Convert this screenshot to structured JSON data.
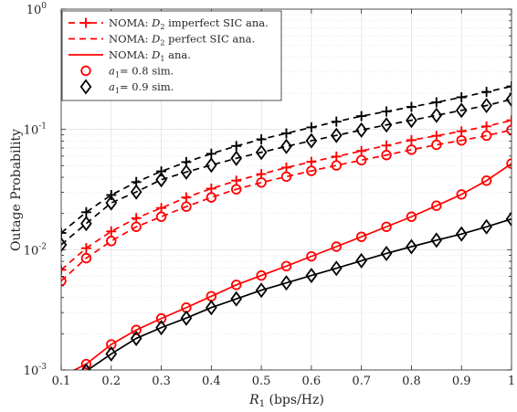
{
  "chart_data": {
    "type": "line",
    "xlabel": "R",
    "xlabel_sub": "1",
    "xlabel_unit": " (bps/Hz)",
    "ylabel": "Outage Probability",
    "xlim": [
      0.1,
      1
    ],
    "ylim": [
      0.001,
      1
    ],
    "yscale": "log",
    "grid": true,
    "legend_position": "top-left",
    "x_ticks": [
      "0.1",
      "0.2",
      "0.3",
      "0.4",
      "0.5",
      "0.6",
      "0.7",
      "0.8",
      "0.9",
      "1"
    ],
    "y_ticks": [
      {
        "base": "10",
        "exp": "-3",
        "value": 0.001
      },
      {
        "base": "10",
        "exp": "-2",
        "value": 0.01
      },
      {
        "base": "10",
        "exp": "-1",
        "value": 0.1
      },
      {
        "base": "10",
        "exp": "0",
        "value": 1
      }
    ],
    "x": [
      0.1,
      0.15,
      0.2,
      0.25,
      0.3,
      0.35,
      0.4,
      0.45,
      0.5,
      0.55,
      0.6,
      0.65,
      0.7,
      0.75,
      0.8,
      0.85,
      0.9,
      0.95,
      1.0
    ],
    "legend": [
      {
        "prefix": "NOMA: ",
        "main": "D",
        "sub": "2",
        "suffix": " imperfect SIC ana.",
        "color": "#ff0000",
        "line": "dashed",
        "marker": "plus"
      },
      {
        "prefix": "NOMA: ",
        "main": "D",
        "sub": "2",
        "suffix": " perfect SIC ana.",
        "color": "#ff0000",
        "line": "dashed",
        "marker": "none"
      },
      {
        "prefix": "NOMA: ",
        "main": "D",
        "sub": "1",
        "suffix": " ana.",
        "color": "#ff0000",
        "line": "solid",
        "marker": "none"
      },
      {
        "prefix": "",
        "main": "a",
        "sub": "1",
        "suffix": "= 0.8 sim.",
        "color": "#ff0000",
        "line": "none",
        "marker": "circle"
      },
      {
        "prefix": "",
        "main": "a",
        "sub": "1",
        "suffix": "= 0.9 sim.",
        "color": "#000000",
        "line": "none",
        "marker": "diamond"
      }
    ],
    "series": [
      {
        "color": "#ff0000",
        "line": "solid",
        "marker": "circle",
        "values": [
          0.00088,
          0.00112,
          0.00163,
          0.00215,
          0.00268,
          0.0033,
          0.0041,
          0.0051,
          0.0061,
          0.0073,
          0.0088,
          0.0106,
          0.0128,
          0.0155,
          0.0188,
          0.0232,
          0.0288,
          0.0375,
          0.052
        ]
      },
      {
        "color": "#000000",
        "line": "solid",
        "marker": "diamond",
        "values": [
          0.00072,
          0.00098,
          0.00136,
          0.00183,
          0.00225,
          0.0027,
          0.0033,
          0.0039,
          0.0046,
          0.0053,
          0.0061,
          0.007,
          0.0081,
          0.0093,
          0.0106,
          0.012,
          0.0135,
          0.0155,
          0.018
        ]
      },
      {
        "color": "#ff0000",
        "line": "dashed",
        "marker": "circle",
        "values": [
          0.0055,
          0.0085,
          0.0118,
          0.0155,
          0.0188,
          0.0228,
          0.0272,
          0.0318,
          0.0362,
          0.0405,
          0.0452,
          0.0502,
          0.0555,
          0.0612,
          0.0678,
          0.0745,
          0.081,
          0.0888,
          0.099
        ]
      },
      {
        "color": "#ff0000",
        "line": "dashed",
        "marker": "plus",
        "values": [
          0.0068,
          0.0103,
          0.0142,
          0.0183,
          0.0222,
          0.0272,
          0.0322,
          0.0375,
          0.0425,
          0.0482,
          0.0538,
          0.0595,
          0.0662,
          0.0735,
          0.0815,
          0.0885,
          0.0965,
          0.106,
          0.119
        ]
      },
      {
        "color": "#000000",
        "line": "dashed",
        "marker": "diamond",
        "values": [
          0.011,
          0.0165,
          0.0245,
          0.0302,
          0.0382,
          0.0442,
          0.0505,
          0.0575,
          0.0645,
          0.0722,
          0.0805,
          0.0892,
          0.0988,
          0.109,
          0.119,
          0.131,
          0.144,
          0.158,
          0.178
        ]
      },
      {
        "color": "#000000",
        "line": "dashed",
        "marker": "plus",
        "values": [
          0.0138,
          0.0205,
          0.0285,
          0.0365,
          0.0448,
          0.0535,
          0.0628,
          0.0728,
          0.0828,
          0.0928,
          0.104,
          0.116,
          0.129,
          0.141,
          0.154,
          0.168,
          0.185,
          0.205,
          0.228
        ]
      }
    ]
  }
}
